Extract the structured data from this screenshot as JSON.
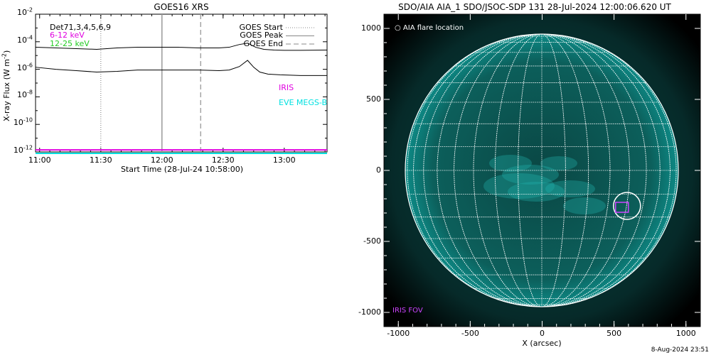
{
  "chart_data": [
    {
      "type": "line",
      "title": "GOES16 XRS",
      "xlabel": "Start Time (28-Jul-24 10:58:00)",
      "ylabel": "X-ray Flux (W m",
      "ylabel_unit_exp": "-2",
      "ylabel_close": ")",
      "xlim_minutes": [
        0,
        143
      ],
      "x_ticks": [
        {
          "label": "11:00",
          "minutes": 2
        },
        {
          "label": "11:30",
          "minutes": 32
        },
        {
          "label": "12:00",
          "minutes": 62
        },
        {
          "label": "12:30",
          "minutes": 92
        },
        {
          "label": "13:00",
          "minutes": 122
        }
      ],
      "ylim_log10": [
        -12,
        -2
      ],
      "y_scale": "log",
      "y_ticks": [
        {
          "base": "10",
          "exp": "-2"
        },
        {
          "base": "10",
          "exp": "-4"
        },
        {
          "base": "10",
          "exp": "-6"
        },
        {
          "base": "10",
          "exp": "-8"
        },
        {
          "base": "10",
          "exp": "-10"
        },
        {
          "base": "10",
          "exp": "-12"
        }
      ],
      "legend_left": {
        "entries": [
          {
            "text": "GOES Start",
            "linestyle": "dotted",
            "color": "#888888"
          },
          {
            "text": "GOES Peak",
            "linestyle": "solid",
            "color": "#888888"
          },
          {
            "text": "GOES End",
            "linestyle": "dashed",
            "color": "#888888"
          }
        ]
      },
      "channel_labels": [
        {
          "text": "Det71,3,4,5,6,9",
          "color": "#000000"
        },
        {
          "text": "6-12 keV",
          "color": "#e000e0"
        },
        {
          "text": "12-25 keV",
          "color": "#22cc22"
        }
      ],
      "instrument_labels": [
        {
          "text": "IRIS",
          "color": "#e000e0"
        },
        {
          "text": "EVE MEGS-B",
          "color": "#00e0e0"
        }
      ],
      "event_lines": [
        {
          "name": "GOES Start",
          "minutes": 32,
          "style": "dotted"
        },
        {
          "name": "GOES Peak",
          "minutes": 62,
          "style": "solid"
        },
        {
          "name": "GOES End",
          "minutes": 81,
          "style": "dashed"
        }
      ],
      "series": [
        {
          "color": "#000000",
          "x_minutes": [
            0,
            10,
            20,
            30,
            40,
            50,
            60,
            70,
            80,
            90,
            95,
            100,
            104,
            108,
            112,
            117,
            122,
            130,
            143
          ],
          "log10_flux": [
            -4.4,
            -4.45,
            -4.5,
            -4.55,
            -4.45,
            -4.4,
            -4.4,
            -4.4,
            -4.45,
            -4.45,
            -4.4,
            -4.2,
            -4.1,
            -4.4,
            -4.55,
            -4.6,
            -4.62,
            -4.62,
            -4.6
          ]
        },
        {
          "color": "#000000",
          "x_minutes": [
            0,
            10,
            20,
            30,
            40,
            50,
            60,
            70,
            80,
            90,
            95,
            100,
            104,
            107,
            110,
            114,
            120,
            130,
            143
          ],
          "log10_flux": [
            -5.85,
            -6.0,
            -6.1,
            -6.2,
            -6.15,
            -6.05,
            -6.05,
            -6.05,
            -6.05,
            -6.1,
            -6.05,
            -5.8,
            -5.35,
            -5.85,
            -6.2,
            -6.35,
            -6.4,
            -6.45,
            -6.45
          ]
        },
        {
          "color": "#e000e0",
          "x_minutes": [
            0,
            143
          ],
          "log10_flux": [
            -11.85,
            -11.85
          ]
        },
        {
          "color": "#00e0e0",
          "x_minutes": [
            0,
            143
          ],
          "log10_flux": [
            -12.1,
            -12.1
          ]
        }
      ]
    },
    {
      "type": "scatter",
      "title": "SDO/AIA AIA_1 SDO/JSOC-SDP 131 28-Jul-2024 12:00:06.620 UT",
      "xlabel": "X (arcsec)",
      "xlim": [
        -1100,
        1100
      ],
      "ylim": [
        -1100,
        1100
      ],
      "x_ticks": [
        "-1000",
        "-500",
        "0",
        "500",
        "1000"
      ],
      "y_ticks": [
        "1000",
        "500",
        "0",
        "-500",
        "-1000"
      ],
      "grid": true,
      "annotations": {
        "flare_location_label": "AIA flare location",
        "iris_fov_label": "IRIS FOV",
        "flare_location_xy": [
          590,
          -250
        ],
        "iris_fov_center_xy": [
          555,
          -260
        ]
      },
      "colors": {
        "disk": "#0d8a86",
        "corona": "#0a4a48",
        "grid": "#ffffff",
        "iris": "#cc44ff"
      }
    }
  ],
  "footer": {
    "timestamp": "8-Aug-2024 23:51"
  }
}
